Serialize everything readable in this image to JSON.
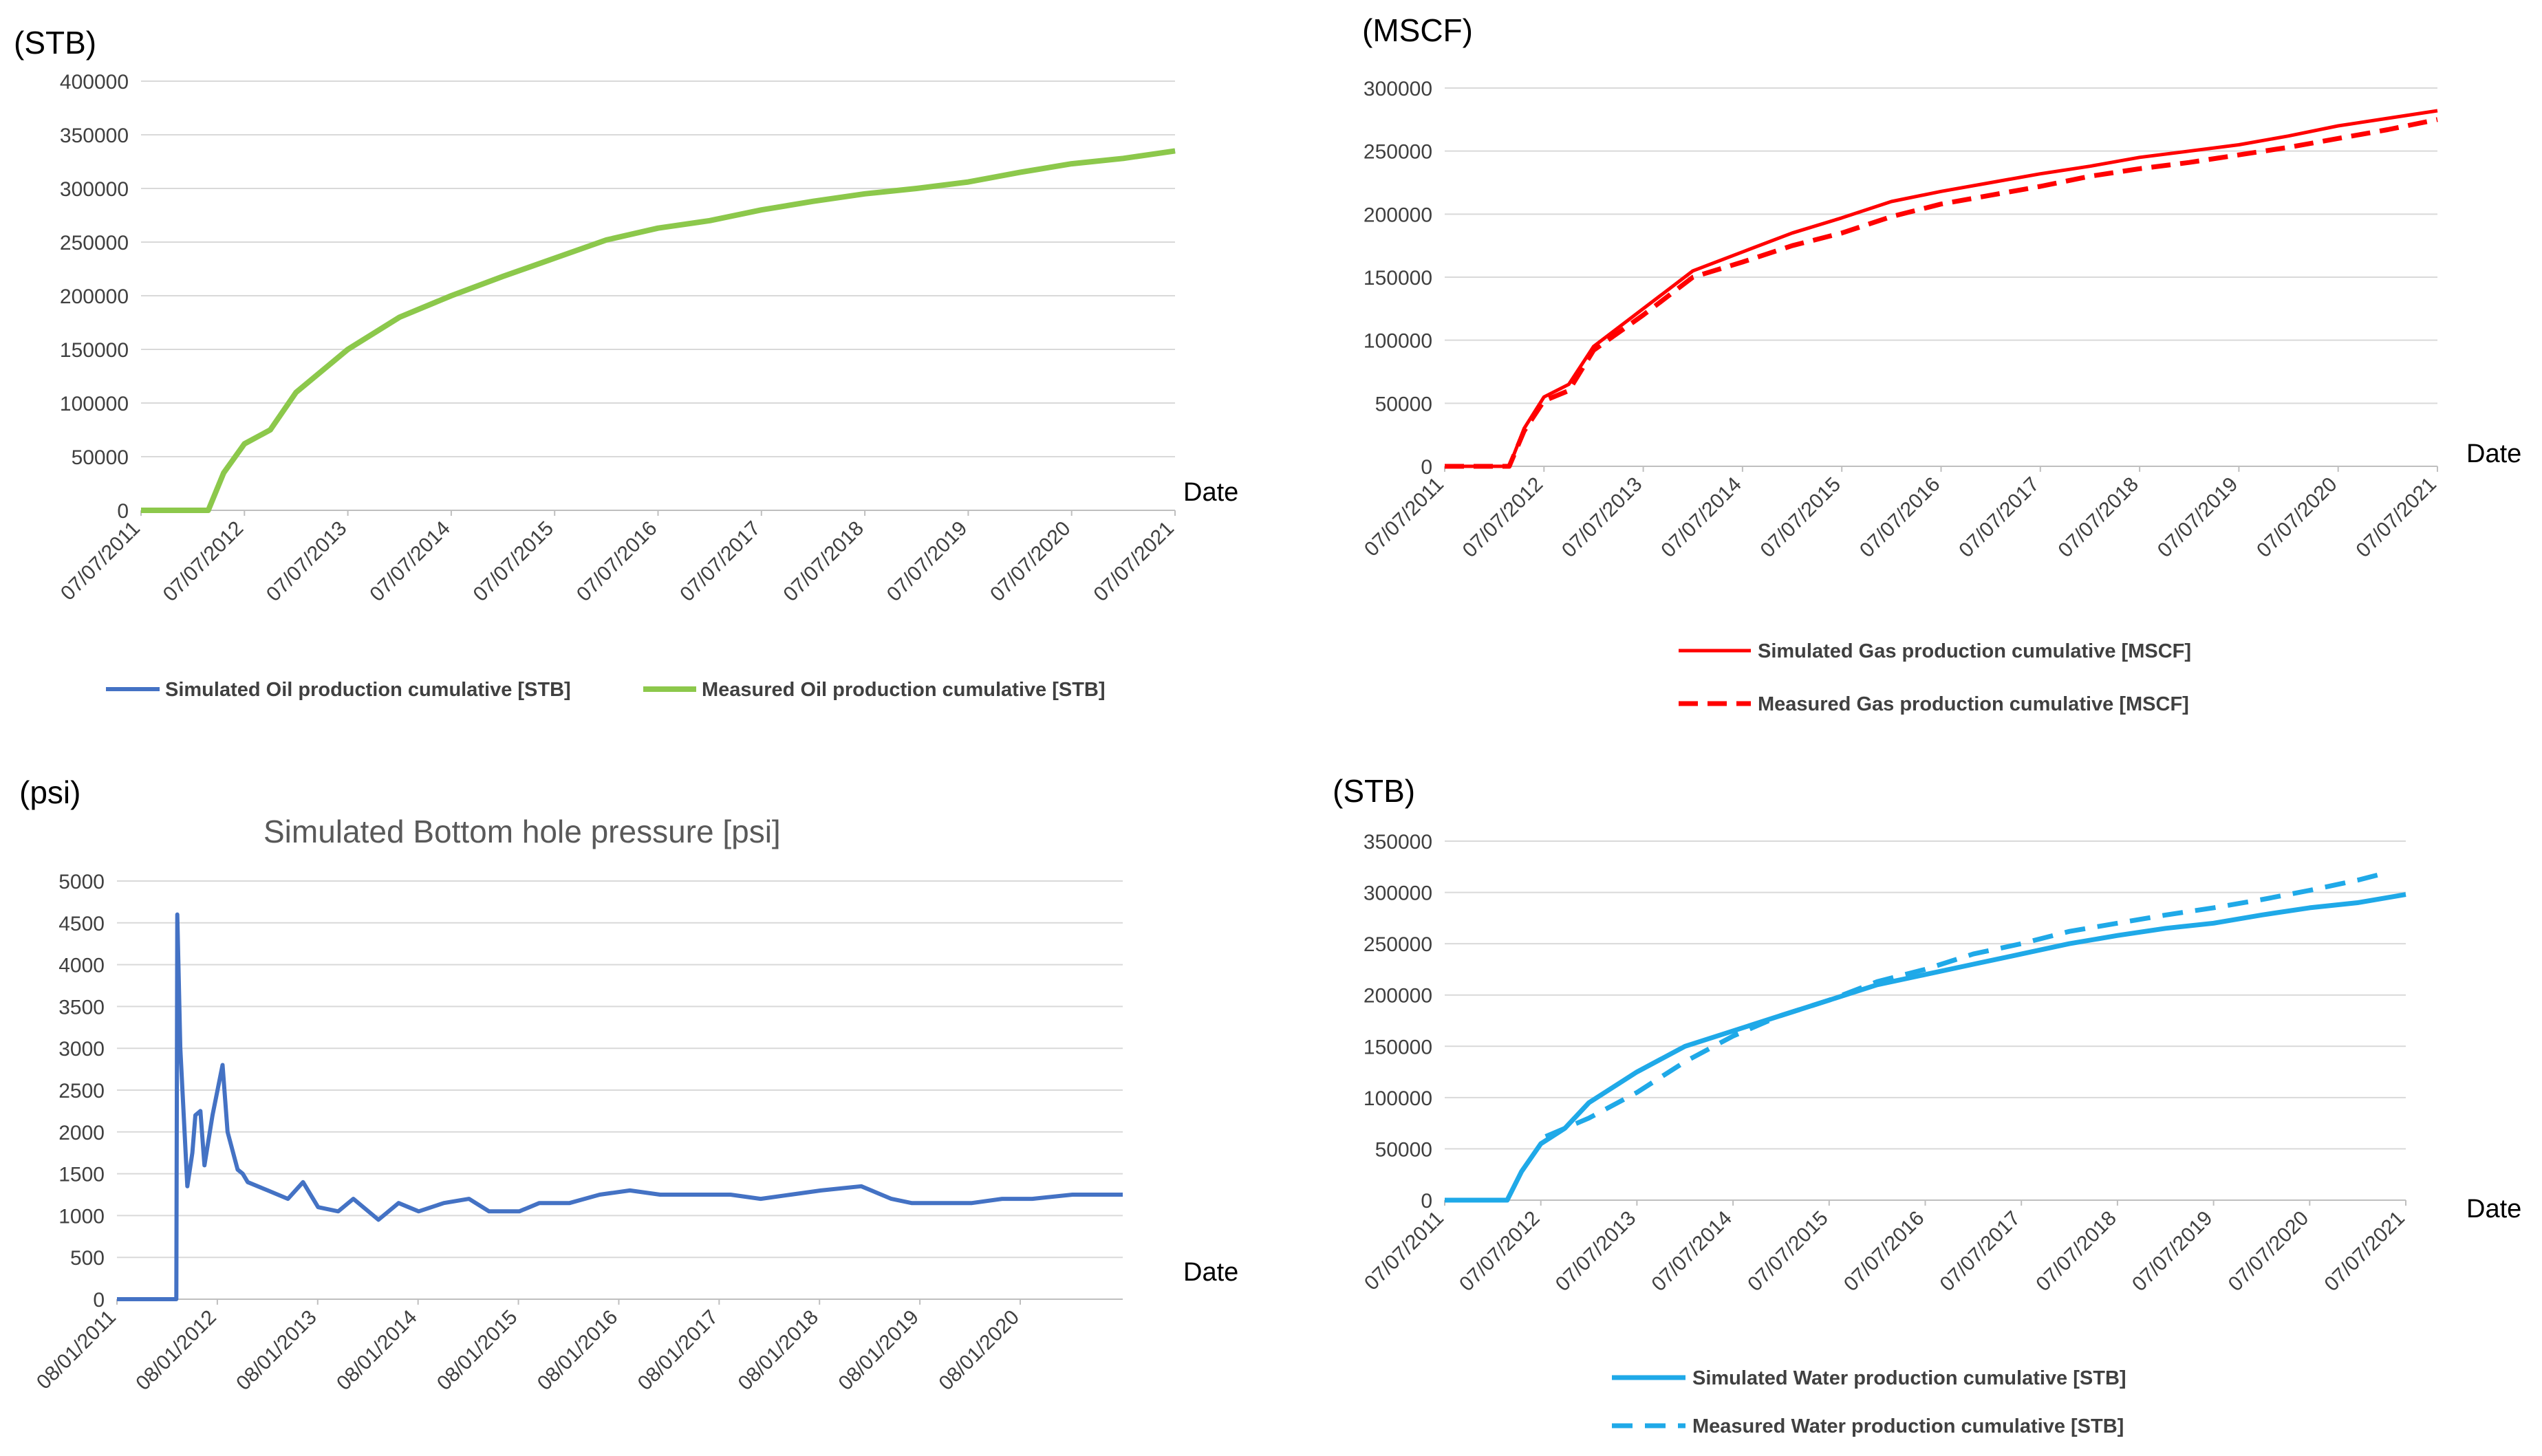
{
  "colors": {
    "oil_simulated": "#4472C4",
    "oil_measured": "#8CC84B",
    "gas": "#FF0000",
    "pressure": "#4472C4",
    "water": "#1FA9E8",
    "grid": "#D9D9D9",
    "text": "#404040"
  },
  "chart_data": [
    {
      "id": "oil",
      "type": "line",
      "unit_label": "(STB)",
      "title": "",
      "xlabel": "Date",
      "ylabel": "(STB)",
      "ylim": [
        0,
        400000
      ],
      "yticks": [
        "0",
        "50000",
        "100000",
        "150000",
        "200000",
        "250000",
        "300000",
        "350000",
        "400000"
      ],
      "xlim": [
        2011.5,
        2021.5
      ],
      "xticks": [
        "07/07/2011",
        "07/07/2012",
        "07/07/2013",
        "07/07/2014",
        "07/07/2015",
        "07/07/2016",
        "07/07/2017",
        "07/07/2018",
        "07/07/2019",
        "07/07/2020",
        "07/07/2021"
      ],
      "legend": [
        "Simulated Oil production cumulative [STB]",
        "Measured Oil production cumulative [STB]"
      ],
      "series": [
        {
          "name": "Simulated Oil production cumulative [STB]",
          "x": [
            2011.5,
            2012.15,
            2012.3,
            2012.5,
            2012.75,
            2013.0,
            2013.5,
            2014.0,
            2014.5,
            2015.0,
            2015.5,
            2016.0,
            2016.5,
            2017.0,
            2017.5,
            2018.0,
            2018.5,
            2019.0,
            2019.5,
            2020.0,
            2020.5,
            2021.0,
            2021.5
          ],
          "values": [
            0,
            0,
            35000,
            62000,
            75000,
            110000,
            150000,
            180000,
            200000,
            218000,
            235000,
            252000,
            263000,
            270000,
            280000,
            288000,
            295000,
            300000,
            306000,
            315000,
            323000,
            328000,
            335000
          ]
        },
        {
          "name": "Measured Oil production cumulative [STB]",
          "x": [
            2011.5,
            2012.15,
            2012.3,
            2012.5,
            2012.75,
            2013.0,
            2013.5,
            2014.0,
            2014.5,
            2015.0,
            2015.5,
            2016.0,
            2016.5,
            2017.0,
            2017.5,
            2018.0,
            2018.5,
            2019.0,
            2019.5,
            2020.0,
            2020.5,
            2021.0,
            2021.5
          ],
          "values": [
            0,
            0,
            35000,
            62000,
            75000,
            110000,
            150000,
            180000,
            200000,
            218000,
            235000,
            252000,
            263000,
            270000,
            280000,
            288000,
            295000,
            300000,
            306000,
            315000,
            323000,
            328000,
            335000
          ]
        }
      ]
    },
    {
      "id": "gas",
      "type": "line",
      "unit_label": "(MSCF)",
      "title": "",
      "xlabel": "Date",
      "ylabel": "(MSCF)",
      "ylim": [
        0,
        300000
      ],
      "yticks": [
        "0",
        "50000",
        "100000",
        "150000",
        "200000",
        "250000",
        "300000"
      ],
      "xlim": [
        2011.5,
        2021.5
      ],
      "xticks": [
        "07/07/2011",
        "07/07/2012",
        "07/07/2013",
        "07/07/2014",
        "07/07/2015",
        "07/07/2016",
        "07/07/2017",
        "07/07/2018",
        "07/07/2019",
        "07/07/2020",
        "07/07/2021"
      ],
      "legend": [
        "Simulated Gas production cumulative [MSCF]",
        "Measured Gas production cumulative [MSCF]"
      ],
      "series": [
        {
          "name": "Simulated Gas production cumulative [MSCF]",
          "x": [
            2011.5,
            2012.15,
            2012.3,
            2012.5,
            2012.75,
            2013.0,
            2013.5,
            2014.0,
            2014.5,
            2015.0,
            2015.5,
            2016.0,
            2016.5,
            2017.0,
            2017.5,
            2018.0,
            2018.5,
            2019.0,
            2019.5,
            2020.0,
            2020.5,
            2021.0,
            2021.5
          ],
          "values": [
            0,
            0,
            30000,
            55000,
            65000,
            95000,
            125000,
            155000,
            170000,
            185000,
            197000,
            210000,
            218000,
            225000,
            232000,
            238000,
            245000,
            250000,
            255000,
            262000,
            270000,
            276000,
            282000
          ]
        },
        {
          "name": "Measured Gas production cumulative [MSCF]",
          "x": [
            2011.5,
            2012.15,
            2012.3,
            2012.5,
            2012.75,
            2013.0,
            2013.5,
            2014.0,
            2014.5,
            2015.0,
            2015.5,
            2016.0,
            2016.5,
            2017.0,
            2017.5,
            2018.0,
            2018.5,
            2019.0,
            2019.5,
            2020.0,
            2020.5,
            2021.0,
            2021.5
          ],
          "values": [
            0,
            0,
            28000,
            52000,
            60000,
            92000,
            120000,
            150000,
            162000,
            175000,
            185000,
            198000,
            208000,
            215000,
            222000,
            230000,
            236000,
            241000,
            247000,
            253000,
            260000,
            267000,
            275000
          ]
        }
      ]
    },
    {
      "id": "pressure",
      "type": "line",
      "unit_label": "(psi)",
      "title": "Simulated Bottom hole pressure [psi]",
      "xlabel": "Date",
      "ylabel": "(psi)",
      "ylim": [
        0,
        5000
      ],
      "yticks": [
        "0",
        "500",
        "1000",
        "1500",
        "2000",
        "2500",
        "3000",
        "3500",
        "4000",
        "4500",
        "5000"
      ],
      "xlim": [
        2011.5,
        2021.5
      ],
      "xticks": [
        "08/01/2011",
        "08/01/2012",
        "08/01/2013",
        "08/01/2014",
        "08/01/2015",
        "08/01/2016",
        "08/01/2017",
        "08/01/2018",
        "08/01/2019",
        "08/01/2020"
      ],
      "legend": [],
      "series": [
        {
          "name": "Simulated Bottom hole pressure [psi]",
          "x": [
            2011.5,
            2012.09,
            2012.1,
            2012.13,
            2012.2,
            2012.25,
            2012.28,
            2012.33,
            2012.37,
            2012.45,
            2012.5,
            2012.55,
            2012.6,
            2012.7,
            2012.75,
            2012.8,
            2013.0,
            2013.2,
            2013.35,
            2013.5,
            2013.7,
            2013.85,
            2014.1,
            2014.3,
            2014.5,
            2014.75,
            2015.0,
            2015.2,
            2015.5,
            2015.7,
            2016.0,
            2016.3,
            2016.6,
            2016.9,
            2017.3,
            2017.6,
            2017.9,
            2018.2,
            2018.5,
            2018.9,
            2019.2,
            2019.4,
            2019.7,
            2020.0,
            2020.3,
            2020.6,
            2021.0,
            2021.5
          ],
          "values": [
            0,
            0,
            4600,
            3000,
            1350,
            1750,
            2200,
            2250,
            1600,
            2200,
            2500,
            2800,
            2000,
            1550,
            1500,
            1400,
            1300,
            1200,
            1400,
            1100,
            1050,
            1200,
            950,
            1150,
            1050,
            1150,
            1200,
            1050,
            1050,
            1150,
            1150,
            1250,
            1300,
            1250,
            1250,
            1250,
            1200,
            1250,
            1300,
            1350,
            1200,
            1150,
            1150,
            1150,
            1200,
            1200,
            1250,
            1250
          ]
        }
      ]
    },
    {
      "id": "water",
      "type": "line",
      "unit_label": "(STB)",
      "title": "",
      "xlabel": "Date",
      "ylabel": "(STB)",
      "ylim": [
        0,
        350000
      ],
      "yticks": [
        "0",
        "50000",
        "100000",
        "150000",
        "200000",
        "250000",
        "300000",
        "350000"
      ],
      "xlim": [
        2011.5,
        2021.5
      ],
      "xticks": [
        "07/07/2011",
        "07/07/2012",
        "07/07/2013",
        "07/07/2014",
        "07/07/2015",
        "07/07/2016",
        "07/07/2017",
        "07/07/2018",
        "07/07/2019",
        "07/07/2020",
        "07/07/2021"
      ],
      "legend": [
        "Simulated Water production cumulative [STB]",
        "Measured Water production cumulative [STB]"
      ],
      "series": [
        {
          "name": "Simulated Water production cumulative [STB]",
          "x": [
            2011.5,
            2012.15,
            2012.3,
            2012.5,
            2012.75,
            2013.0,
            2013.5,
            2014.0,
            2014.5,
            2015.0,
            2015.5,
            2016.0,
            2016.5,
            2017.0,
            2017.5,
            2018.0,
            2018.5,
            2019.0,
            2019.5,
            2020.0,
            2020.5,
            2021.0,
            2021.5
          ],
          "values": [
            0,
            0,
            28000,
            55000,
            70000,
            95000,
            125000,
            150000,
            165000,
            180000,
            195000,
            210000,
            220000,
            230000,
            240000,
            250000,
            258000,
            265000,
            270000,
            278000,
            285000,
            290000,
            298000
          ]
        },
        {
          "name": "Measured Water production cumulative [STB]",
          "x": [
            2012.55,
            2012.8,
            2013.0,
            2013.5,
            2014.0,
            2014.5,
            2015.0,
            2015.5,
            2016.0,
            2016.5,
            2017.0,
            2017.5,
            2018.0,
            2018.5,
            2019.0,
            2019.5,
            2020.0,
            2020.5,
            2021.0,
            2021.25
          ],
          "values": [
            62000,
            72000,
            80000,
            105000,
            135000,
            160000,
            180000,
            195000,
            213000,
            225000,
            240000,
            250000,
            262000,
            270000,
            278000,
            285000,
            293000,
            302000,
            312000,
            318000
          ]
        }
      ]
    }
  ]
}
